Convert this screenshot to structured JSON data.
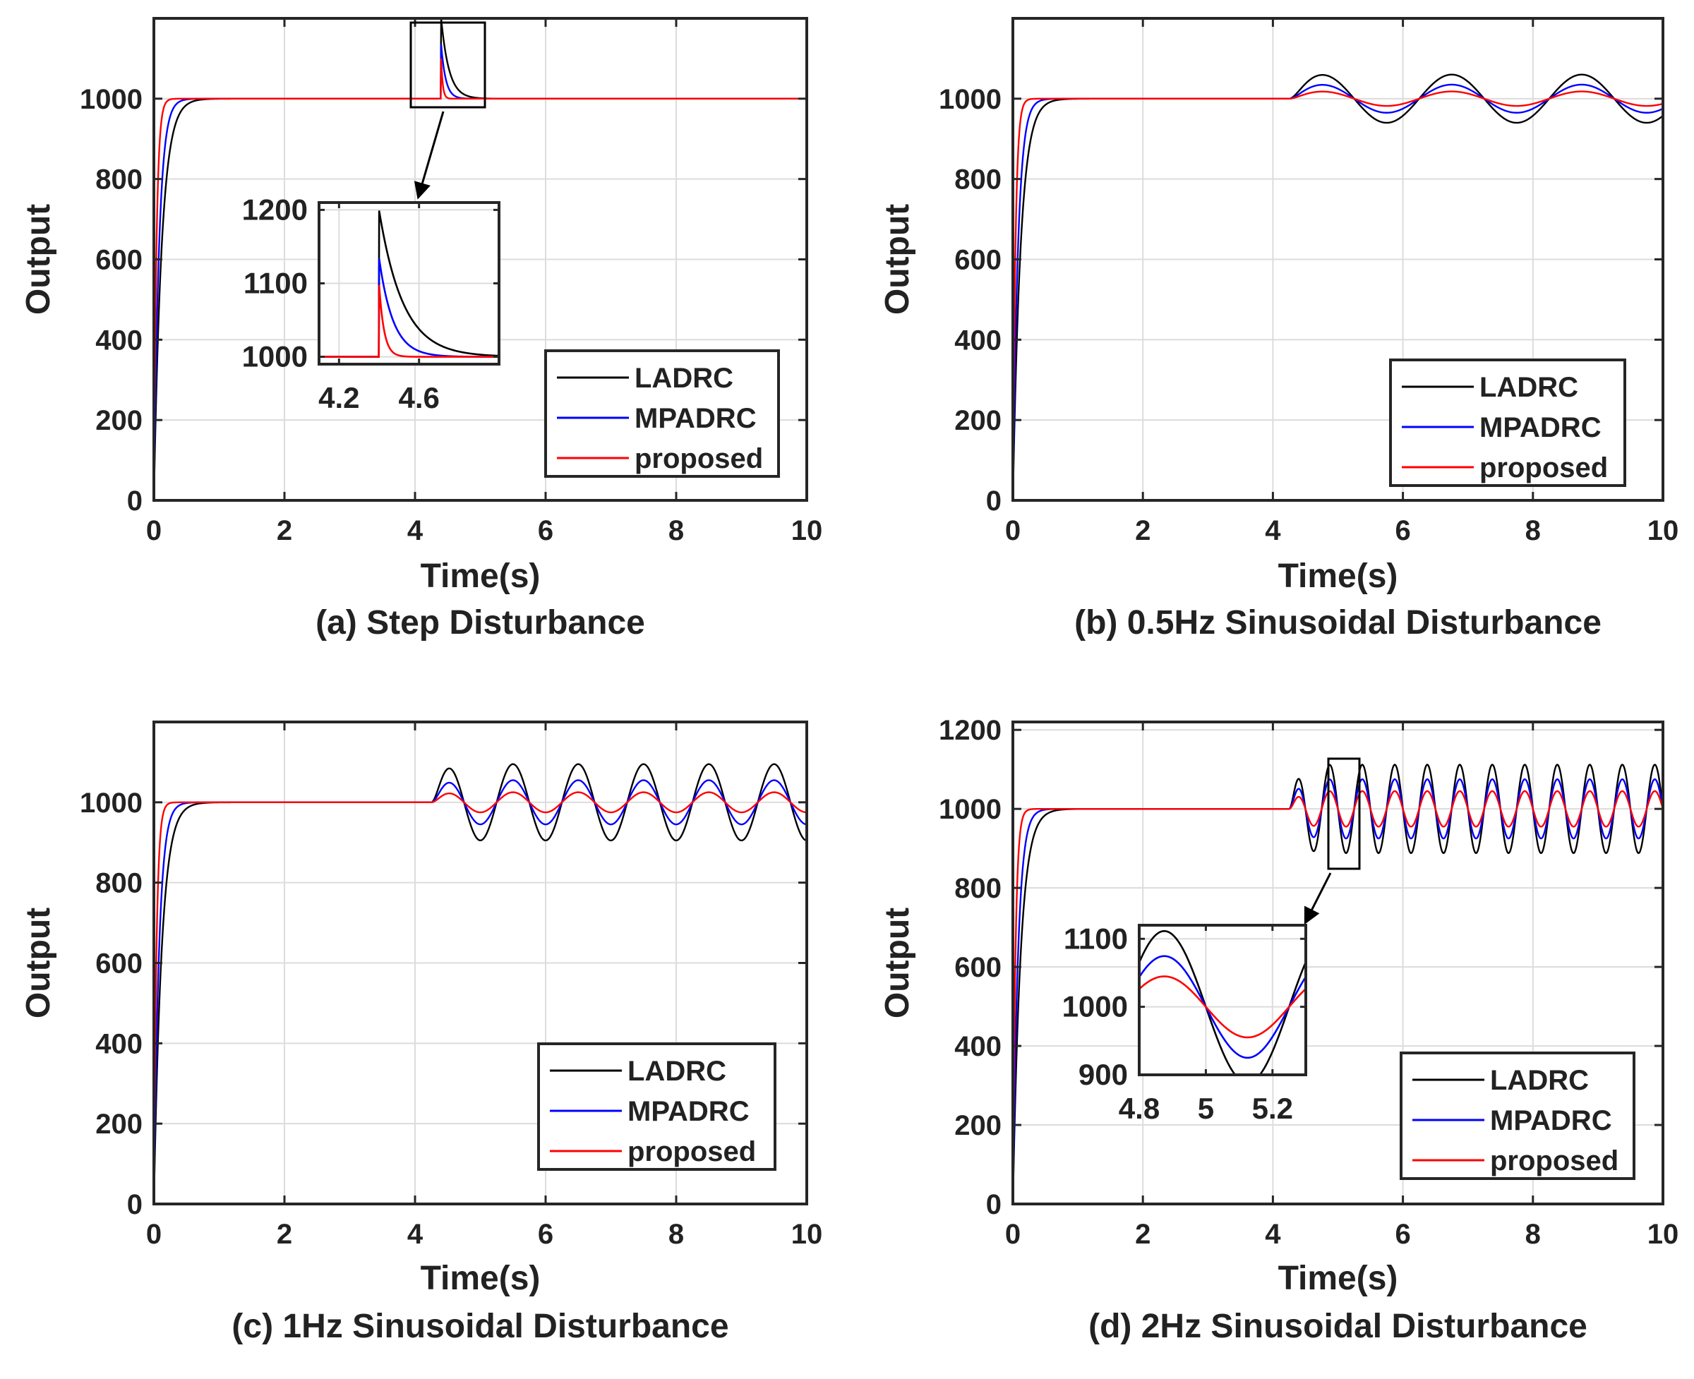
{
  "colors": {
    "LADRC": "#000000",
    "MPADRC": "#0000ff",
    "proposed": "#ff0000",
    "grid": "#dcdcdc",
    "axis": "#262626"
  },
  "chart_data": [
    {
      "type": "line",
      "caption": "(a) Step Disturbance",
      "xlabel": "Time(s)",
      "ylabel": "Output",
      "xlim": [
        0,
        10
      ],
      "ylim": [
        0,
        1200
      ],
      "xticks": [
        0,
        2,
        4,
        6,
        8,
        10
      ],
      "yticks": [
        0,
        200,
        400,
        600,
        800,
        1000
      ],
      "grid": true,
      "legend_placement": "bottom-right",
      "setpoint": 1000,
      "disturbance": {
        "kind": "step",
        "start": 4.4
      },
      "series": [
        {
          "name": "LADRC",
          "rise_time_constant": 0.12,
          "peak": 1200,
          "recovery_time_constant": 0.12
        },
        {
          "name": "MPADRC",
          "rise_time_constant": 0.08,
          "peak": 1135,
          "recovery_time_constant": 0.07
        },
        {
          "name": "proposed",
          "rise_time_constant": 0.04,
          "peak": 1100,
          "recovery_time_constant": 0.025
        }
      ],
      "inset": {
        "xlim": [
          4.1,
          5.0
        ],
        "ylim": [
          990,
          1210
        ],
        "xticks": [
          4.2,
          4.6
        ],
        "yticks": [
          1000,
          1100,
          1200
        ]
      }
    },
    {
      "type": "line",
      "caption": "(b) 0.5Hz Sinusoidal Disturbance",
      "xlabel": "Time(s)",
      "ylabel": "Output",
      "xlim": [
        0,
        10
      ],
      "ylim": [
        0,
        1200
      ],
      "xticks": [
        0,
        2,
        4,
        6,
        8,
        10
      ],
      "yticks": [
        0,
        200,
        400,
        600,
        800,
        1000
      ],
      "grid": true,
      "legend_placement": "bottom-right",
      "setpoint": 1000,
      "disturbance": {
        "kind": "sine",
        "start": 4.25,
        "frequency_hz": 0.5
      },
      "series": [
        {
          "name": "LADRC",
          "rise_time_constant": 0.12,
          "amplitude": 60
        },
        {
          "name": "MPADRC",
          "rise_time_constant": 0.08,
          "amplitude": 35
        },
        {
          "name": "proposed",
          "rise_time_constant": 0.04,
          "amplitude": 18
        }
      ]
    },
    {
      "type": "line",
      "caption": "(c) 1Hz Sinusoidal Disturbance",
      "xlabel": "Time(s)",
      "ylabel": "Output",
      "xlim": [
        0,
        10
      ],
      "ylim": [
        0,
        1200
      ],
      "xticks": [
        0,
        2,
        4,
        6,
        8,
        10
      ],
      "yticks": [
        0,
        200,
        400,
        600,
        800,
        1000
      ],
      "grid": true,
      "legend_placement": "bottom-right",
      "setpoint": 1000,
      "disturbance": {
        "kind": "sine",
        "start": 4.25,
        "frequency_hz": 1
      },
      "series": [
        {
          "name": "LADRC",
          "rise_time_constant": 0.12,
          "amplitude": 95
        },
        {
          "name": "MPADRC",
          "rise_time_constant": 0.08,
          "amplitude": 55
        },
        {
          "name": "proposed",
          "rise_time_constant": 0.04,
          "amplitude": 25
        }
      ]
    },
    {
      "type": "line",
      "caption": "(d) 2Hz Sinusoidal Disturbance",
      "xlabel": "Time(s)",
      "ylabel": "Output",
      "xlim": [
        0,
        10
      ],
      "ylim": [
        0,
        1220
      ],
      "xticks": [
        0,
        2,
        4,
        6,
        8,
        10
      ],
      "yticks": [
        0,
        200,
        400,
        600,
        800,
        1000,
        1200
      ],
      "grid": true,
      "legend_placement": "bottom-right",
      "setpoint": 1000,
      "disturbance": {
        "kind": "sine",
        "start": 4.25,
        "frequency_hz": 2
      },
      "series": [
        {
          "name": "LADRC",
          "rise_time_constant": 0.12,
          "amplitude": 112
        },
        {
          "name": "MPADRC",
          "rise_time_constant": 0.08,
          "amplitude": 75
        },
        {
          "name": "proposed",
          "rise_time_constant": 0.04,
          "amplitude": 45
        }
      ],
      "inset": {
        "xlim": [
          4.8,
          5.3
        ],
        "ylim": [
          900,
          1120
        ],
        "xticks": [
          4.8,
          5,
          5.2
        ],
        "yticks": [
          900,
          1000,
          1100
        ]
      }
    }
  ]
}
